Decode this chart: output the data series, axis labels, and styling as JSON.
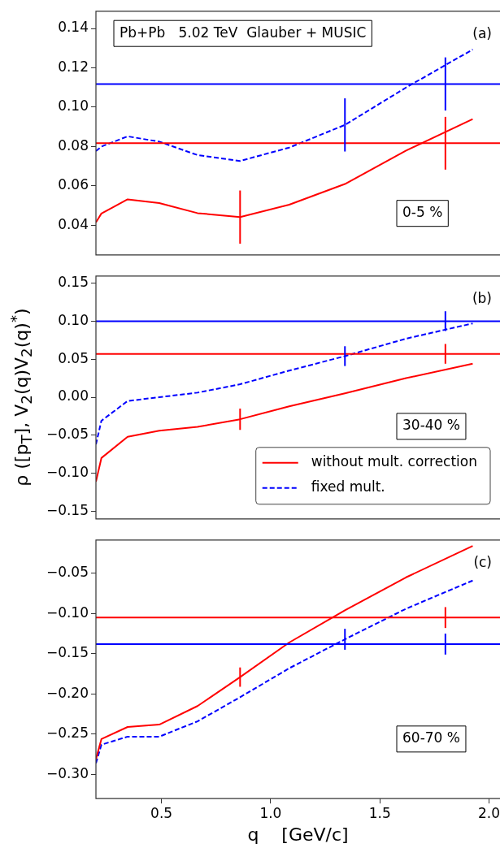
{
  "chart_data": [
    {
      "type": "line",
      "title": "Pb+Pb   5.02 TeV  Glauber + MUSIC",
      "annotations": [
        "(a)",
        "0-5 %"
      ],
      "x": [
        0.2,
        0.225,
        0.345,
        0.49,
        0.665,
        0.86,
        1.085,
        1.34,
        1.62,
        1.925
      ],
      "xlim": [
        0.2,
        2.05
      ],
      "ylim": [
        0.025,
        0.149
      ],
      "yticks": [
        {
          "value": 0.04,
          "label": "0.04"
        },
        {
          "value": 0.06,
          "label": "0.06"
        },
        {
          "value": 0.08,
          "label": "0.08"
        },
        {
          "value": 0.1,
          "label": "0.10"
        },
        {
          "value": 0.12,
          "label": "0.12"
        },
        {
          "value": 0.14,
          "label": "0.14"
        }
      ],
      "tick_labels": "y",
      "grid": false,
      "marker": "none",
      "series": [
        {
          "color": "#ff0000",
          "line_style": "solid",
          "x": [
            0.2,
            1.8,
            2.05
          ],
          "values": [
            0.0817,
            0.0817,
            0.0817
          ],
          "errors": [
            null,
            0.0134,
            null
          ]
        },
        {
          "color": "#0000ff",
          "line_style": "solid",
          "x": [
            0.2,
            1.8,
            2.05
          ],
          "values": [
            0.1118,
            0.1118,
            0.1118
          ],
          "errors": [
            null,
            0.0135,
            null
          ]
        },
        {
          "color": "#ff0000",
          "line_style": "solid",
          "values": [
            0.0415,
            0.046,
            0.0532,
            0.0513,
            0.0462,
            0.0442,
            0.0505,
            0.061,
            0.078,
            0.094
          ],
          "errors": [
            null,
            null,
            null,
            null,
            null,
            0.0135,
            null,
            null,
            null,
            null
          ]
        },
        {
          "color": "#0000ff",
          "line_style": "dashed",
          "values": [
            0.0777,
            0.08,
            0.0852,
            0.0825,
            0.0757,
            0.0727,
            0.0795,
            0.091,
            0.11,
            0.1293
          ],
          "errors": [
            null,
            null,
            null,
            null,
            null,
            null,
            null,
            0.0135,
            null,
            null
          ]
        }
      ]
    },
    {
      "type": "line",
      "ylabel": "ρ ([p$_{T}$], V$_{2}$(q)V$_{2}$(q)$^{*}$)",
      "annotations": [
        "(b)",
        "30-40 %"
      ],
      "x": [
        0.2,
        0.225,
        0.345,
        0.49,
        0.665,
        0.86,
        1.085,
        1.34,
        1.62,
        1.925
      ],
      "xlim": [
        0.2,
        2.05
      ],
      "ylim": [
        -0.16,
        0.16
      ],
      "yticks": [
        {
          "value": -0.15,
          "label": "−0.15"
        },
        {
          "value": -0.1,
          "label": "−0.10"
        },
        {
          "value": -0.05,
          "label": "−0.05"
        },
        {
          "value": 0,
          "label": "0.00"
        },
        {
          "value": 0.05,
          "label": "0.05"
        },
        {
          "value": 0.1,
          "label": "0.10"
        },
        {
          "value": 0.15,
          "label": "0.15"
        }
      ],
      "tick_labels": "y",
      "grid": false,
      "marker": "none",
      "legend": "bottom right",
      "series": [
        {
          "color": "#ff0000",
          "line_style": "solid",
          "x": [
            0.2,
            1.8,
            2.05
          ],
          "values": [
            0.057,
            0.057,
            0.057
          ],
          "errors": [
            null,
            0.013,
            null
          ]
        },
        {
          "color": "#0000ff",
          "line_style": "solid",
          "x": [
            0.2,
            1.8,
            2.05
          ],
          "values": [
            0.1,
            0.1,
            0.1
          ],
          "errors": [
            null,
            0.013,
            null
          ]
        },
        {
          "name": "without mult. correction",
          "color": "#ff0000",
          "line_style": "solid",
          "values": [
            -0.111,
            -0.08,
            -0.052,
            -0.044,
            -0.039,
            -0.029,
            -0.012,
            0.005,
            0.025,
            0.044
          ],
          "errors": [
            null,
            null,
            null,
            null,
            null,
            0.014,
            null,
            null,
            null,
            null
          ]
        },
        {
          "name": "fixed mult.",
          "color": "#0000ff",
          "line_style": "dashed",
          "values": [
            -0.062,
            -0.031,
            -0.005,
            0.0,
            0.006,
            0.017,
            0.035,
            0.054,
            0.077,
            0.097
          ],
          "errors": [
            null,
            null,
            null,
            null,
            null,
            null,
            null,
            0.013,
            null,
            null
          ]
        }
      ]
    },
    {
      "type": "line",
      "xlabel": "q    [GeV/c]",
      "annotations": [
        "(c)",
        "60-70 %"
      ],
      "x": [
        0.2,
        0.225,
        0.345,
        0.49,
        0.665,
        0.86,
        1.085,
        1.34,
        1.62,
        1.925
      ],
      "xlim": [
        0.2,
        2.05
      ],
      "xticks": [
        {
          "value": 0.5,
          "label": "0.5"
        },
        {
          "value": 1.0,
          "label": "1.0"
        },
        {
          "value": 1.5,
          "label": "1.5"
        },
        {
          "value": 2.0,
          "label": "2.0"
        }
      ],
      "ylim": [
        -0.33,
        -0.008
      ],
      "yticks": [
        {
          "value": -0.3,
          "label": "−0.30"
        },
        {
          "value": -0.25,
          "label": "−0.25"
        },
        {
          "value": -0.2,
          "label": "−0.20"
        },
        {
          "value": -0.15,
          "label": "−0.15"
        },
        {
          "value": -0.1,
          "label": "−0.10"
        },
        {
          "value": -0.05,
          "label": "−0.05"
        }
      ],
      "grid": false,
      "marker": "none",
      "series": [
        {
          "color": "#ff0000",
          "line_style": "solid",
          "x": [
            0.2,
            1.8,
            2.05
          ],
          "values": [
            -0.105,
            -0.105,
            -0.105
          ],
          "errors": [
            null,
            0.013,
            null
          ]
        },
        {
          "color": "#0000ff",
          "line_style": "solid",
          "x": [
            0.2,
            1.8,
            2.05
          ],
          "values": [
            -0.138,
            -0.138,
            -0.138
          ],
          "errors": [
            null,
            0.013,
            null
          ]
        },
        {
          "color": "#ff0000",
          "line_style": "solid",
          "values": [
            -0.281,
            -0.256,
            -0.241,
            -0.238,
            -0.215,
            -0.179,
            -0.136,
            -0.096,
            -0.055,
            -0.016
          ],
          "errors": [
            null,
            null,
            null,
            null,
            null,
            0.012,
            null,
            null,
            null,
            null
          ]
        },
        {
          "color": "#0000ff",
          "line_style": "dashed",
          "values": [
            -0.286,
            -0.263,
            -0.253,
            -0.253,
            -0.234,
            -0.204,
            -0.168,
            -0.132,
            -0.094,
            -0.059
          ],
          "errors": [
            null,
            null,
            null,
            null,
            null,
            null,
            null,
            0.013,
            null,
            null
          ]
        }
      ]
    }
  ]
}
